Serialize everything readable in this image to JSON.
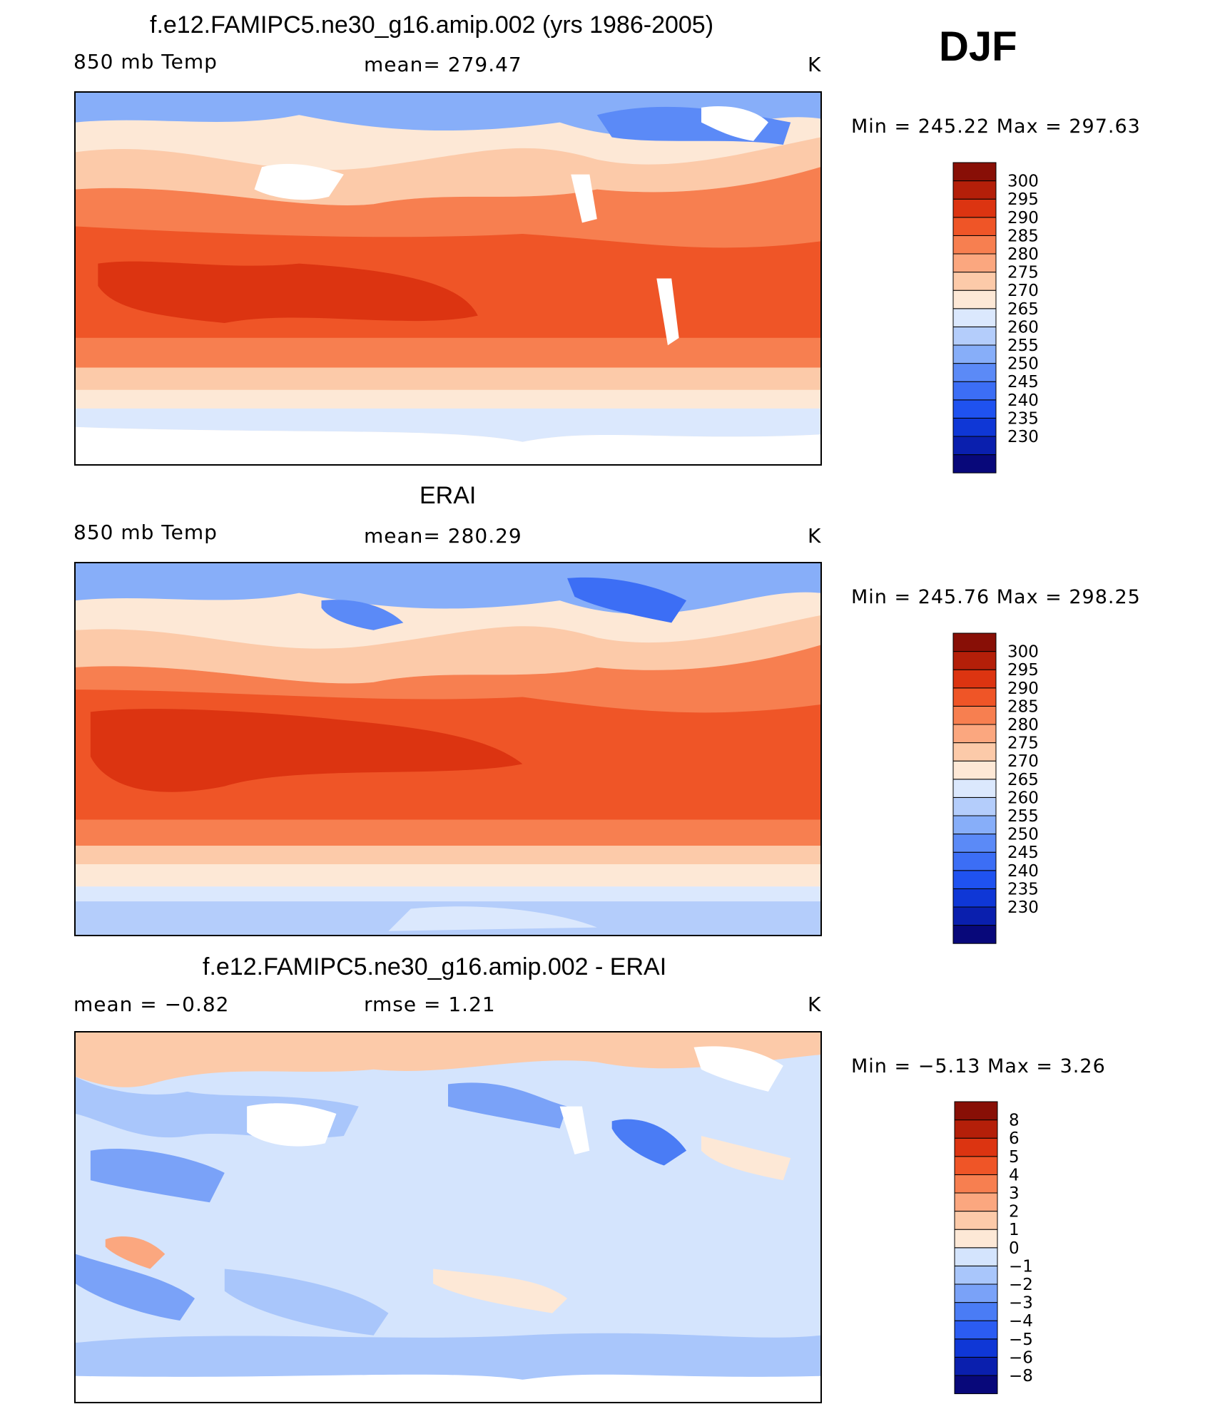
{
  "season": "DJF",
  "colors": {
    "temp_scale": [
      "#08087a",
      "#0a1fae",
      "#0f37d6",
      "#1f52f0",
      "#3c6ef5",
      "#5b8af7",
      "#87aef9",
      "#b4cdfb",
      "#dbe8fd",
      "#fde8d6",
      "#fccaa9",
      "#fba77f",
      "#f77f50",
      "#ef5527",
      "#dc3411",
      "#b41f09",
      "#880f06"
    ],
    "diff_scale": [
      "#08087a",
      "#0a1fae",
      "#0f37d6",
      "#2b5cf2",
      "#4a7cf5",
      "#7aa2f8",
      "#a9c6fb",
      "#d4e4fd",
      "#fde8d6",
      "#fccaa9",
      "#fba77f",
      "#f77f50",
      "#ef5527",
      "#dc3411",
      "#b41f09",
      "#880f06"
    ]
  },
  "panels": [
    {
      "title": "f.e12.FAMIPC5.ne30_g16.amip.002 (yrs 1986-2005)",
      "left_label": "850 mb Temp",
      "center_label": "mean=  279.47",
      "units": "K",
      "minmax": "Min  =  245.22  Max  =  297.63"
    },
    {
      "title": "ERAI",
      "left_label": "850 mb Temp",
      "center_label": "mean=  280.29",
      "units": "K",
      "minmax": "Min  =  245.76  Max  =  298.25"
    },
    {
      "title": "f.e12.FAMIPC5.ne30_g16.amip.002 - ERAI",
      "left_label": "mean  =    −0.82",
      "center_label": "rmse  =     1.21",
      "units": "K",
      "minmax": "Min  =    −5.13  Max  =       3.26"
    }
  ],
  "chart_data": [
    {
      "type": "heatmap",
      "title": "f.e12.FAMIPC5.ne30_g16.amip.002 (yrs 1986-2005)",
      "variable": "850 mb Temp",
      "units": "K",
      "mean": 279.47,
      "min": 245.22,
      "max": 297.63,
      "colorbar_levels": [
        300,
        295,
        290,
        285,
        280,
        275,
        270,
        265,
        260,
        255,
        250,
        245,
        240,
        235,
        230
      ]
    },
    {
      "type": "heatmap",
      "title": "ERAI",
      "variable": "850 mb Temp",
      "units": "K",
      "mean": 280.29,
      "min": 245.76,
      "max": 298.25,
      "colorbar_levels": [
        300,
        295,
        290,
        285,
        280,
        275,
        270,
        265,
        260,
        255,
        250,
        245,
        240,
        235,
        230
      ]
    },
    {
      "type": "heatmap",
      "title": "f.e12.FAMIPC5.ne30_g16.amip.002 - ERAI",
      "units": "K",
      "mean": -0.82,
      "rmse": 1.21,
      "min": -5.13,
      "max": 3.26,
      "colorbar_levels": [
        "8",
        "6",
        "5",
        "4",
        "3",
        "2",
        "1",
        "0",
        "−1",
        "−2",
        "−3",
        "−4",
        "−5",
        "−6",
        "−8"
      ]
    }
  ]
}
